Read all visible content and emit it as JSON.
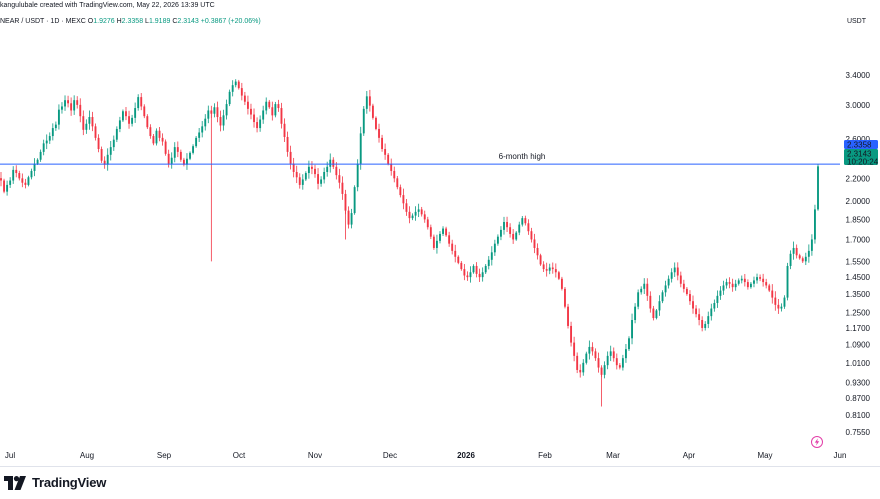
{
  "header": {
    "author_line": "kangulubale created with TradingView.com, May 22, 2026 13:39 UTC",
    "symbol": "NEAR / USDT · 1D · MEXC",
    "open_label": "O",
    "open": "1.9276",
    "high_label": "H",
    "high": "2.3358",
    "low_label": "L",
    "low": "1.9189",
    "close_label": "C",
    "close": "2.3143",
    "change": "+0.3867 (+20.06%)",
    "currency": "USDT"
  },
  "footer": {
    "brand": "TradingView"
  },
  "chart_data": {
    "type": "candlestick",
    "scale": "log",
    "ylim": [
      0.72,
      3.75
    ],
    "y_ticks": [
      "3.4000",
      "3.0000",
      "2.6000",
      "2.2000",
      "2.0000",
      "1.8500",
      "1.7000",
      "1.5500",
      "1.4500",
      "1.3500",
      "1.2500",
      "1.1700",
      "1.0900",
      "1.0100",
      "0.9300",
      "0.8700",
      "0.8100",
      "0.7550"
    ],
    "x_ticks": [
      "Jul",
      "Aug",
      "Sep",
      "Oct",
      "Nov",
      "Dec",
      "2026",
      "Feb",
      "Mar",
      "Apr",
      "May",
      "Jun"
    ],
    "reference_line": {
      "label": "6-month high",
      "value": 2.3358
    },
    "price_labels": {
      "high": "2.3358",
      "last": "2.3143",
      "countdown": "10:20:24"
    },
    "colors": {
      "up": "#089981",
      "down": "#f23645",
      "line": "#2962ff"
    },
    "closes": [
      2.18,
      2.08,
      2.14,
      2.18,
      2.28,
      2.25,
      2.2,
      2.16,
      2.14,
      2.21,
      2.27,
      2.34,
      2.38,
      2.46,
      2.55,
      2.58,
      2.63,
      2.72,
      2.76,
      2.94,
      2.98,
      3.06,
      3.02,
      2.93,
      3.06,
      3.0,
      2.86,
      2.7,
      2.77,
      2.85,
      2.74,
      2.61,
      2.49,
      2.37,
      2.33,
      2.43,
      2.51,
      2.59,
      2.71,
      2.81,
      2.92,
      2.86,
      2.77,
      2.84,
      2.96,
      3.1,
      2.98,
      2.86,
      2.73,
      2.63,
      2.55,
      2.69,
      2.61,
      2.57,
      2.44,
      2.34,
      2.4,
      2.51,
      2.46,
      2.38,
      2.33,
      2.39,
      2.45,
      2.52,
      2.61,
      2.67,
      2.74,
      2.83,
      2.93,
      2.89,
      2.97,
      2.85,
      2.75,
      2.87,
      3.01,
      3.17,
      3.26,
      3.31,
      3.22,
      3.12,
      3.04,
      2.95,
      2.88,
      2.79,
      2.72,
      2.82,
      2.93,
      3.04,
      2.97,
      2.87,
      3.01,
      2.96,
      2.77,
      2.62,
      2.46,
      2.34,
      2.26,
      2.21,
      2.14,
      2.19,
      2.25,
      2.31,
      2.29,
      2.24,
      2.15,
      2.19,
      2.26,
      2.31,
      2.38,
      2.31,
      2.23,
      2.16,
      2.06,
      1.92,
      1.81,
      1.9,
      2.12,
      2.34,
      2.66,
      2.95,
      3.11,
      2.99,
      2.84,
      2.71,
      2.61,
      2.49,
      2.43,
      2.34,
      2.27,
      2.2,
      2.12,
      2.05,
      1.98,
      1.91,
      1.86,
      1.88,
      1.91,
      1.93,
      1.89,
      1.85,
      1.79,
      1.72,
      1.64,
      1.69,
      1.74,
      1.78,
      1.73,
      1.67,
      1.62,
      1.58,
      1.54,
      1.5,
      1.46,
      1.45,
      1.48,
      1.52,
      1.47,
      1.45,
      1.48,
      1.52,
      1.56,
      1.61,
      1.67,
      1.72,
      1.77,
      1.83,
      1.79,
      1.74,
      1.7,
      1.75,
      1.81,
      1.86,
      1.82,
      1.76,
      1.7,
      1.64,
      1.59,
      1.53,
      1.5,
      1.49,
      1.51,
      1.5,
      1.48,
      1.44,
      1.38,
      1.28,
      1.18,
      1.1,
      1.04,
      0.98,
      0.97,
      1.01,
      1.05,
      1.08,
      1.06,
      1.03,
      0.99,
      0.96,
      1.0,
      1.04,
      1.06,
      1.03,
      1.0,
      0.99,
      1.03,
      1.07,
      1.12,
      1.21,
      1.28,
      1.36,
      1.38,
      1.41,
      1.34,
      1.27,
      1.22,
      1.26,
      1.31,
      1.36,
      1.4,
      1.44,
      1.48,
      1.51,
      1.46,
      1.41,
      1.38,
      1.35,
      1.31,
      1.27,
      1.24,
      1.21,
      1.17,
      1.19,
      1.23,
      1.27,
      1.3,
      1.34,
      1.37,
      1.4,
      1.42,
      1.41,
      1.39,
      1.41,
      1.43,
      1.44,
      1.42,
      1.39,
      1.41,
      1.43,
      1.45,
      1.44,
      1.42,
      1.4,
      1.37,
      1.33,
      1.29,
      1.27,
      1.28,
      1.33,
      1.52,
      1.6,
      1.64,
      1.59,
      1.57,
      1.55,
      1.58,
      1.62,
      1.7,
      1.93,
      2.3143
    ]
  }
}
